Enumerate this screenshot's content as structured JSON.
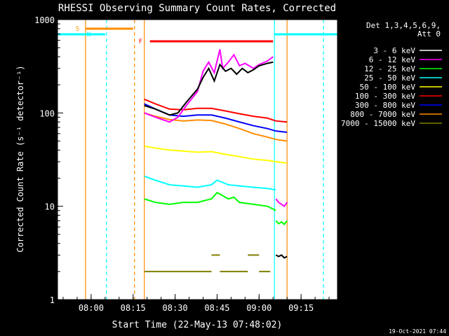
{
  "chart_data": {
    "type": "line",
    "title": "RHESSI Observing Summary Count Rates, Corrected",
    "xlabel": "Start Time (22-May-13 07:48:02)",
    "ylabel": "Corrected Count Rate (s⁻¹ detector⁻¹)",
    "yscale": "log",
    "ylim": [
      1,
      1000
    ],
    "xlim_minutes_after_0748": [
      0,
      100
    ],
    "x_tick_labels": [
      "08:00",
      "08:15",
      "08:30",
      "08:45",
      "09:00",
      "09:15"
    ],
    "x_tick_minutes": [
      12,
      27,
      42,
      57,
      72,
      87
    ],
    "y_tick_labels": [
      "1",
      "10",
      "100",
      "1000"
    ],
    "y_tick_values": [
      1,
      10,
      100,
      1000
    ],
    "legend_header": [
      "Det 1,3,4,5,6,9,",
      "Att 0"
    ],
    "legend_position": "top-right",
    "data_start_min": 31,
    "data_end_min": 82,
    "series": [
      {
        "name": "3 - 6 keV",
        "color": "#000000",
        "x": [
          31,
          35,
          40,
          43,
          46,
          50,
          52,
          54,
          56,
          58,
          60,
          62,
          64,
          66,
          68,
          70,
          72,
          75,
          77
        ],
        "y": [
          120,
          110,
          95,
          100,
          130,
          180,
          240,
          300,
          220,
          330,
          280,
          300,
          260,
          300,
          270,
          290,
          320,
          340,
          350
        ]
      },
      {
        "name": "6 - 12 keV",
        "color": "#ff00ff",
        "x": [
          31,
          35,
          40,
          43,
          46,
          50,
          52,
          54,
          56,
          58,
          59,
          61,
          63,
          65,
          67,
          70,
          72,
          75,
          77
        ],
        "y": [
          100,
          90,
          80,
          90,
          120,
          170,
          280,
          350,
          270,
          480,
          300,
          350,
          420,
          320,
          340,
          300,
          330,
          360,
          400
        ]
      },
      {
        "name": "12 - 25 keV",
        "color": "#00ff00",
        "x": [
          31,
          35,
          40,
          45,
          50,
          55,
          57,
          59,
          61,
          63,
          65,
          70,
          75,
          78
        ],
        "y": [
          12,
          11,
          10.5,
          11,
          11,
          12,
          14,
          13,
          12,
          12.5,
          11,
          10.5,
          10,
          9
        ]
      },
      {
        "name": "25 - 50 keV",
        "color": "#00ffff",
        "x": [
          31,
          35,
          40,
          45,
          50,
          55,
          57,
          59,
          61,
          65,
          70,
          75,
          78
        ],
        "y": [
          21,
          19,
          17,
          16.5,
          16,
          17,
          19,
          18,
          17,
          16.5,
          16,
          15.5,
          15
        ]
      },
      {
        "name": "50 - 100 keV",
        "color": "#ffff00",
        "x": [
          31,
          35,
          40,
          45,
          50,
          55,
          60,
          65,
          70,
          75,
          78,
          82
        ],
        "y": [
          44,
          42,
          40,
          39,
          38,
          38.5,
          36,
          34,
          32,
          31,
          30,
          29
        ]
      },
      {
        "name": "100 - 300 keV",
        "color": "#ff0000",
        "x": [
          31,
          35,
          40,
          45,
          50,
          55,
          60,
          65,
          70,
          75,
          78,
          82
        ],
        "y": [
          140,
          125,
          110,
          108,
          112,
          112,
          105,
          98,
          92,
          88,
          82,
          80
        ]
      },
      {
        "name": "300 - 800 keV",
        "color": "#0000ff",
        "x": [
          31,
          35,
          40,
          45,
          50,
          55,
          60,
          65,
          70,
          75,
          78,
          82
        ],
        "y": [
          125,
          110,
          95,
          92,
          95,
          95,
          88,
          80,
          73,
          68,
          64,
          62
        ]
      },
      {
        "name": "800 - 7000 keV",
        "color": "#ff8c00",
        "x": [
          31,
          35,
          40,
          45,
          50,
          55,
          60,
          65,
          70,
          75,
          78,
          82
        ],
        "y": [
          100,
          92,
          85,
          82,
          84,
          83,
          76,
          68,
          60,
          55,
          52,
          50
        ]
      },
      {
        "name": "7000 - 15000 keV",
        "color": "#808000",
        "x": [
          31,
          40,
          48,
          52,
          55,
          58,
          64,
          68,
          72,
          76
        ],
        "y": [
          2,
          2,
          2,
          2,
          3,
          2,
          2,
          3,
          2,
          2
        ]
      }
    ],
    "late_segment": {
      "x": [
        78,
        79,
        80,
        81,
        82
      ],
      "black": [
        3,
        2.9,
        3,
        2.8,
        2.9
      ],
      "green": [
        7,
        6.5,
        6.8,
        6.4,
        7
      ],
      "magenta": [
        12,
        11,
        10.5,
        10,
        11
      ]
    },
    "status_bars": [
      {
        "label": "S",
        "color": "#ff8c00",
        "x_start": 10,
        "x_end": 27
      },
      {
        "label": "N",
        "color": "#00ffff",
        "x_start": 0,
        "x_end": 17
      },
      {
        "label": "F",
        "color": "#ff0000",
        "x_start": 33,
        "x_end": 77
      },
      {
        "label": "",
        "color": "#00ffff",
        "x_start": 77.5,
        "x_end": 100
      }
    ],
    "vertical_lines": [
      {
        "x": 10,
        "color": "#ff8c00",
        "style": "solid"
      },
      {
        "x": 17.5,
        "color": "#00ffff",
        "style": "dashed"
      },
      {
        "x": 27.5,
        "color": "#ff8c00",
        "style": "dashed"
      },
      {
        "x": 31,
        "color": "#ff8c00",
        "style": "solid"
      },
      {
        "x": 77.5,
        "color": "#00ffff",
        "style": "solid"
      },
      {
        "x": 82,
        "color": "#ff8c00",
        "style": "solid"
      },
      {
        "x": 95,
        "color": "#00ffff",
        "style": "dashed"
      }
    ],
    "timestamp": "19-Oct-2021 07:44"
  }
}
